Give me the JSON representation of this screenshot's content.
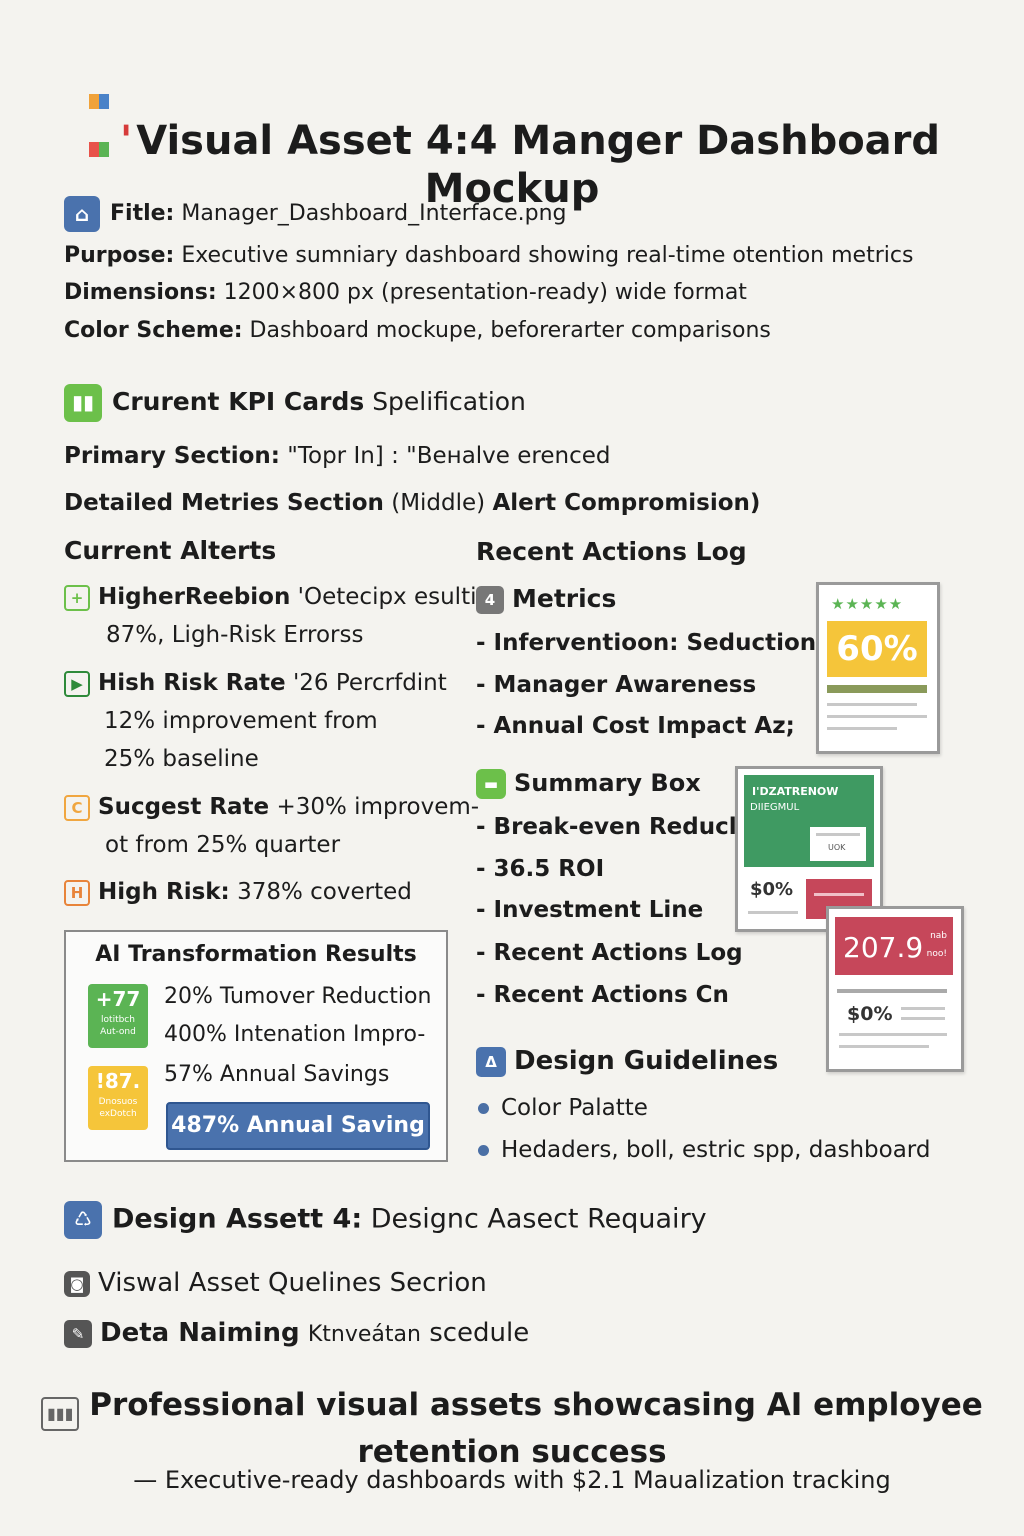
{
  "header": {
    "title_line1": "Visual Asset 4:4 Manger Dashboard",
    "title_line2": "Mockup"
  },
  "file_info": {
    "file_label": "Fitle:",
    "file_value": "Manager_Dashboard_Interface.png",
    "purpose_label": "Purpose:",
    "purpose_value": "Executive sumniary dashboard showing real-time otention metrics",
    "dimensions_label": "Dimensions:",
    "dimensions_value": "1200×800 px (presentation-ready)  wide format",
    "color_label": "Color Scheme:",
    "color_value": "Dashboard mockupe, beforerarter comparisons"
  },
  "kpi_section": {
    "heading_bold": "Crurent KPI Cards",
    "heading_rest": "Spelification",
    "primary_label": "Primary Section:",
    "primary_value": "\"Topr In] : \"Beнalve erenced",
    "detailed_label": "Detailed Metries Section",
    "detailed_mid": "(Middle)",
    "detailed_rest": "Alert Compromision)"
  },
  "alerts": {
    "heading": "Current Alterts",
    "items": [
      {
        "icon": "+",
        "label": "HigherReebion",
        "text": "'Oetecipx esulti",
        "line2": "87%, Ligh-Risk Errorss"
      },
      {
        "icon": "▶",
        "label": "Hish Risk Rate",
        "text": "'26 Percrfdint",
        "line2": "12% improvement from",
        "line3": "25% baseline"
      },
      {
        "icon": "C",
        "label": "Sucgest Rate",
        "text": "+30% improvem-",
        "line2": "ot from 25% quarter"
      },
      {
        "icon": "H",
        "label": "High Risk:",
        "text": "378% coverted"
      }
    ]
  },
  "ai_results": {
    "title": "AI Transformation Results",
    "badge1_big": "+77",
    "badge1_small1": "lotitbch",
    "badge1_small2": "Aut-ond",
    "badge2_big": "!87.",
    "badge2_small1": "Dnosuos",
    "badge2_small2": "exDotch",
    "row1": "20%  Tumover Reduction",
    "row2": "400% Intenation Impro-",
    "row3": "57% Annual Savings",
    "button": "487% Annual Saving"
  },
  "actions": {
    "heading": "Recent Actions Log",
    "metrics_icon": "4",
    "metrics_heading": "Metrics",
    "metrics_items": [
      "- Inferventioon: Seduction",
      "- Manager Awareness",
      "- Annual Cost Impact Az;"
    ],
    "summary_heading": "Summary Box",
    "summary_items": [
      "- Break-even Reducl",
      "- 36.5 ROI",
      "- Investment Line",
      "- Recent Actions Log",
      "- Recent Actions Cn"
    ],
    "design_heading": "Design Guidelines",
    "design_items": [
      "Color Palatte",
      "Hedaders, boll, estric spp, dashboard"
    ]
  },
  "cards": {
    "card1_stars": "★★★★★",
    "card1_value": "60%",
    "card2_head1": "I'DZATRENOW",
    "card2_head2": "DIIEGMUL",
    "card2_mini": "UOK",
    "card2_value": "$0%",
    "card3_value": "207.9",
    "card3_small1": "nab",
    "card3_small2": "noo!",
    "card3_money": "$0%"
  },
  "bottom": {
    "item1_label": "Design Assett 4:",
    "item1_rest": "Designc Aasect Requairy",
    "item2": "Viswal Asset Quelines Secrion",
    "item3_a": "Deta Naiming",
    "item3_b": "Ktnveátan",
    "item3_c": "scedule"
  },
  "footer": {
    "line1": "Professional visual assets showcasing AI employee",
    "line2": "retention success",
    "sub": "— Executive-ready dashboards with $2.1 Maualization tracking"
  },
  "colors": {
    "blue": "#4a72ad",
    "green": "#6cc04a",
    "orange": "#f0a640",
    "yellow": "#f5c53a",
    "red": "#c6475a",
    "teal_green": "#3f9a62"
  }
}
